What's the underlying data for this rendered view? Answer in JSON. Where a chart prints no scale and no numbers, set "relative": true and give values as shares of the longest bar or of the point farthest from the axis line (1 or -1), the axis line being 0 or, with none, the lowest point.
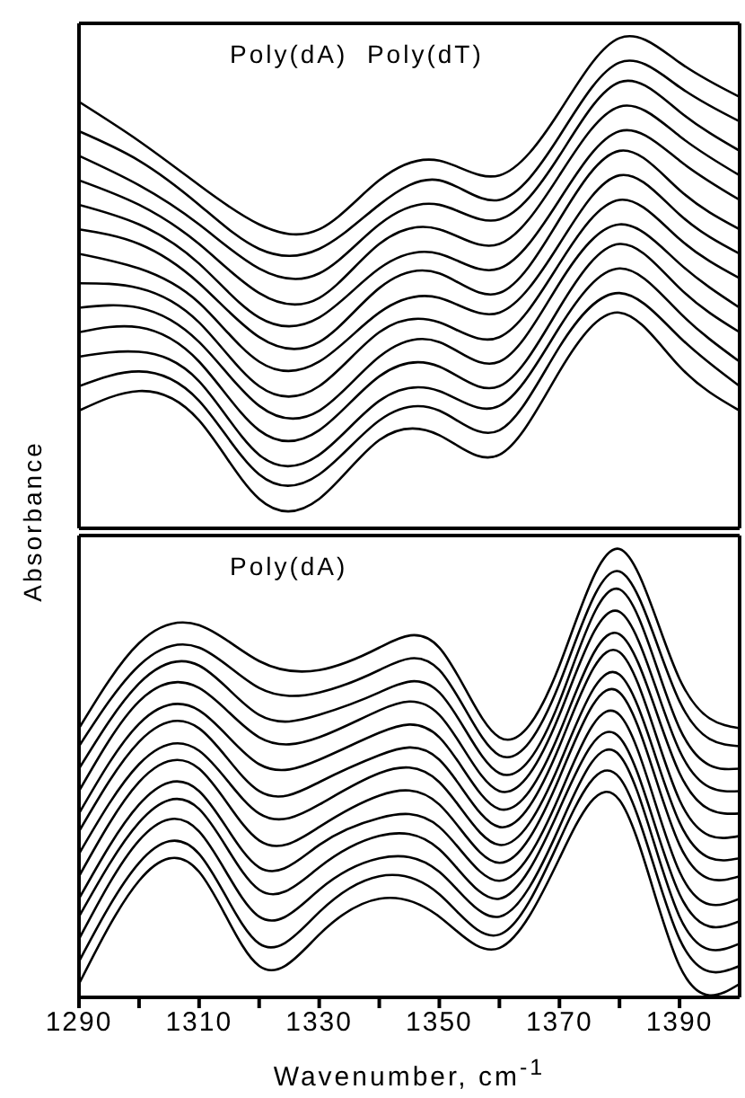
{
  "chart_data": [
    {
      "type": "line",
      "title": "Poly(dA)  Poly(dT)",
      "ylabel": "Absorbance",
      "relative": true,
      "xlim": [
        1290,
        1400
      ],
      "tick_labels": false,
      "x": [
        1290,
        1300,
        1310,
        1320,
        1330,
        1340,
        1350,
        1360,
        1370,
        1380,
        1390,
        1400
      ],
      "series": [
        {
          "color": "#000000",
          "values": [
            0.87,
            0.79,
            0.7,
            0.62,
            0.61,
            0.71,
            0.75,
            0.72,
            0.85,
            1.0,
            0.95,
            0.88
          ]
        },
        {
          "color": "#000000",
          "values": [
            0.81,
            0.75,
            0.66,
            0.57,
            0.57,
            0.66,
            0.71,
            0.67,
            0.8,
            0.95,
            0.9,
            0.83
          ]
        },
        {
          "color": "#000000",
          "values": [
            0.76,
            0.7,
            0.62,
            0.53,
            0.52,
            0.62,
            0.66,
            0.63,
            0.76,
            0.91,
            0.85,
            0.77
          ]
        },
        {
          "color": "#000000",
          "values": [
            0.71,
            0.66,
            0.58,
            0.48,
            0.47,
            0.58,
            0.61,
            0.58,
            0.72,
            0.86,
            0.8,
            0.72
          ]
        },
        {
          "color": "#000000",
          "values": [
            0.66,
            0.62,
            0.54,
            0.43,
            0.43,
            0.53,
            0.56,
            0.53,
            0.67,
            0.81,
            0.75,
            0.67
          ]
        },
        {
          "color": "#000000",
          "values": [
            0.61,
            0.58,
            0.5,
            0.39,
            0.38,
            0.49,
            0.52,
            0.48,
            0.63,
            0.77,
            0.69,
            0.61
          ]
        },
        {
          "color": "#000000",
          "values": [
            0.56,
            0.53,
            0.46,
            0.34,
            0.34,
            0.44,
            0.47,
            0.44,
            0.58,
            0.72,
            0.64,
            0.56
          ]
        },
        {
          "color": "#000000",
          "values": [
            0.5,
            0.49,
            0.42,
            0.29,
            0.29,
            0.4,
            0.42,
            0.39,
            0.54,
            0.67,
            0.59,
            0.51
          ]
        },
        {
          "color": "#000000",
          "values": [
            0.45,
            0.45,
            0.38,
            0.25,
            0.24,
            0.35,
            0.38,
            0.34,
            0.5,
            0.62,
            0.54,
            0.45
          ]
        },
        {
          "color": "#000000",
          "values": [
            0.4,
            0.41,
            0.34,
            0.2,
            0.2,
            0.31,
            0.33,
            0.29,
            0.45,
            0.58,
            0.49,
            0.4
          ]
        },
        {
          "color": "#000000",
          "values": [
            0.35,
            0.36,
            0.3,
            0.15,
            0.15,
            0.26,
            0.28,
            0.25,
            0.41,
            0.53,
            0.44,
            0.34
          ]
        },
        {
          "color": "#000000",
          "values": [
            0.29,
            0.32,
            0.26,
            0.11,
            0.11,
            0.22,
            0.24,
            0.2,
            0.37,
            0.48,
            0.39,
            0.29
          ]
        },
        {
          "color": "#000000",
          "values": [
            0.24,
            0.28,
            0.22,
            0.06,
            0.06,
            0.18,
            0.19,
            0.15,
            0.32,
            0.44,
            0.33,
            0.24
          ]
        }
      ]
    },
    {
      "type": "line",
      "title": "Poly(dA)",
      "xlabel": "Wavenumber, cm$^{-1}$",
      "relative": true,
      "xlim": [
        1290,
        1400
      ],
      "xticks": [
        1290,
        {
          "value": 1300,
          "label": null
        },
        1310,
        {
          "value": 1320,
          "label": null
        },
        1330,
        {
          "value": 1340,
          "label": null
        },
        1350,
        {
          "value": 1360,
          "label": null
        },
        1370,
        {
          "value": 1380,
          "label": null
        },
        1390
      ],
      "tick_labels": "x",
      "x": [
        1290,
        1300,
        1310,
        1320,
        1330,
        1340,
        1350,
        1360,
        1370,
        1380,
        1390,
        1400
      ],
      "series": [
        {
          "color": "#000000",
          "values": [
            0.6,
            0.79,
            0.83,
            0.75,
            0.73,
            0.78,
            0.78,
            0.58,
            0.74,
            1.0,
            0.71,
            0.6
          ]
        },
        {
          "color": "#000000",
          "values": [
            0.56,
            0.74,
            0.78,
            0.69,
            0.68,
            0.73,
            0.73,
            0.54,
            0.7,
            0.95,
            0.66,
            0.56
          ]
        },
        {
          "color": "#000000",
          "values": [
            0.51,
            0.7,
            0.74,
            0.63,
            0.63,
            0.68,
            0.68,
            0.5,
            0.66,
            0.91,
            0.6,
            0.51
          ]
        },
        {
          "color": "#000000",
          "values": [
            0.46,
            0.66,
            0.69,
            0.58,
            0.58,
            0.64,
            0.63,
            0.46,
            0.63,
            0.86,
            0.55,
            0.46
          ]
        },
        {
          "color": "#000000",
          "values": [
            0.41,
            0.61,
            0.64,
            0.52,
            0.53,
            0.59,
            0.58,
            0.42,
            0.59,
            0.81,
            0.5,
            0.41
          ]
        },
        {
          "color": "#000000",
          "values": [
            0.37,
            0.57,
            0.6,
            0.46,
            0.48,
            0.54,
            0.53,
            0.38,
            0.56,
            0.77,
            0.44,
            0.36
          ]
        },
        {
          "color": "#000000",
          "values": [
            0.32,
            0.52,
            0.55,
            0.41,
            0.43,
            0.5,
            0.48,
            0.34,
            0.52,
            0.72,
            0.39,
            0.31
          ]
        },
        {
          "color": "#000000",
          "values": [
            0.27,
            0.48,
            0.51,
            0.35,
            0.38,
            0.45,
            0.43,
            0.3,
            0.49,
            0.68,
            0.34,
            0.27
          ]
        },
        {
          "color": "#000000",
          "values": [
            0.22,
            0.43,
            0.46,
            0.29,
            0.34,
            0.4,
            0.38,
            0.26,
            0.45,
            0.63,
            0.28,
            0.22
          ]
        },
        {
          "color": "#000000",
          "values": [
            0.18,
            0.39,
            0.42,
            0.24,
            0.29,
            0.36,
            0.33,
            0.22,
            0.42,
            0.58,
            0.23,
            0.17
          ]
        },
        {
          "color": "#000000",
          "values": [
            0.13,
            0.35,
            0.37,
            0.18,
            0.24,
            0.31,
            0.28,
            0.18,
            0.38,
            0.54,
            0.18,
            0.12
          ]
        },
        {
          "color": "#000000",
          "values": [
            0.08,
            0.3,
            0.32,
            0.12,
            0.19,
            0.27,
            0.23,
            0.14,
            0.35,
            0.49,
            0.13,
            0.07
          ]
        },
        {
          "color": "#000000",
          "values": [
            0.03,
            0.26,
            0.28,
            0.07,
            0.14,
            0.22,
            0.18,
            0.11,
            0.31,
            0.44,
            0.07,
            0.03
          ]
        }
      ]
    }
  ]
}
